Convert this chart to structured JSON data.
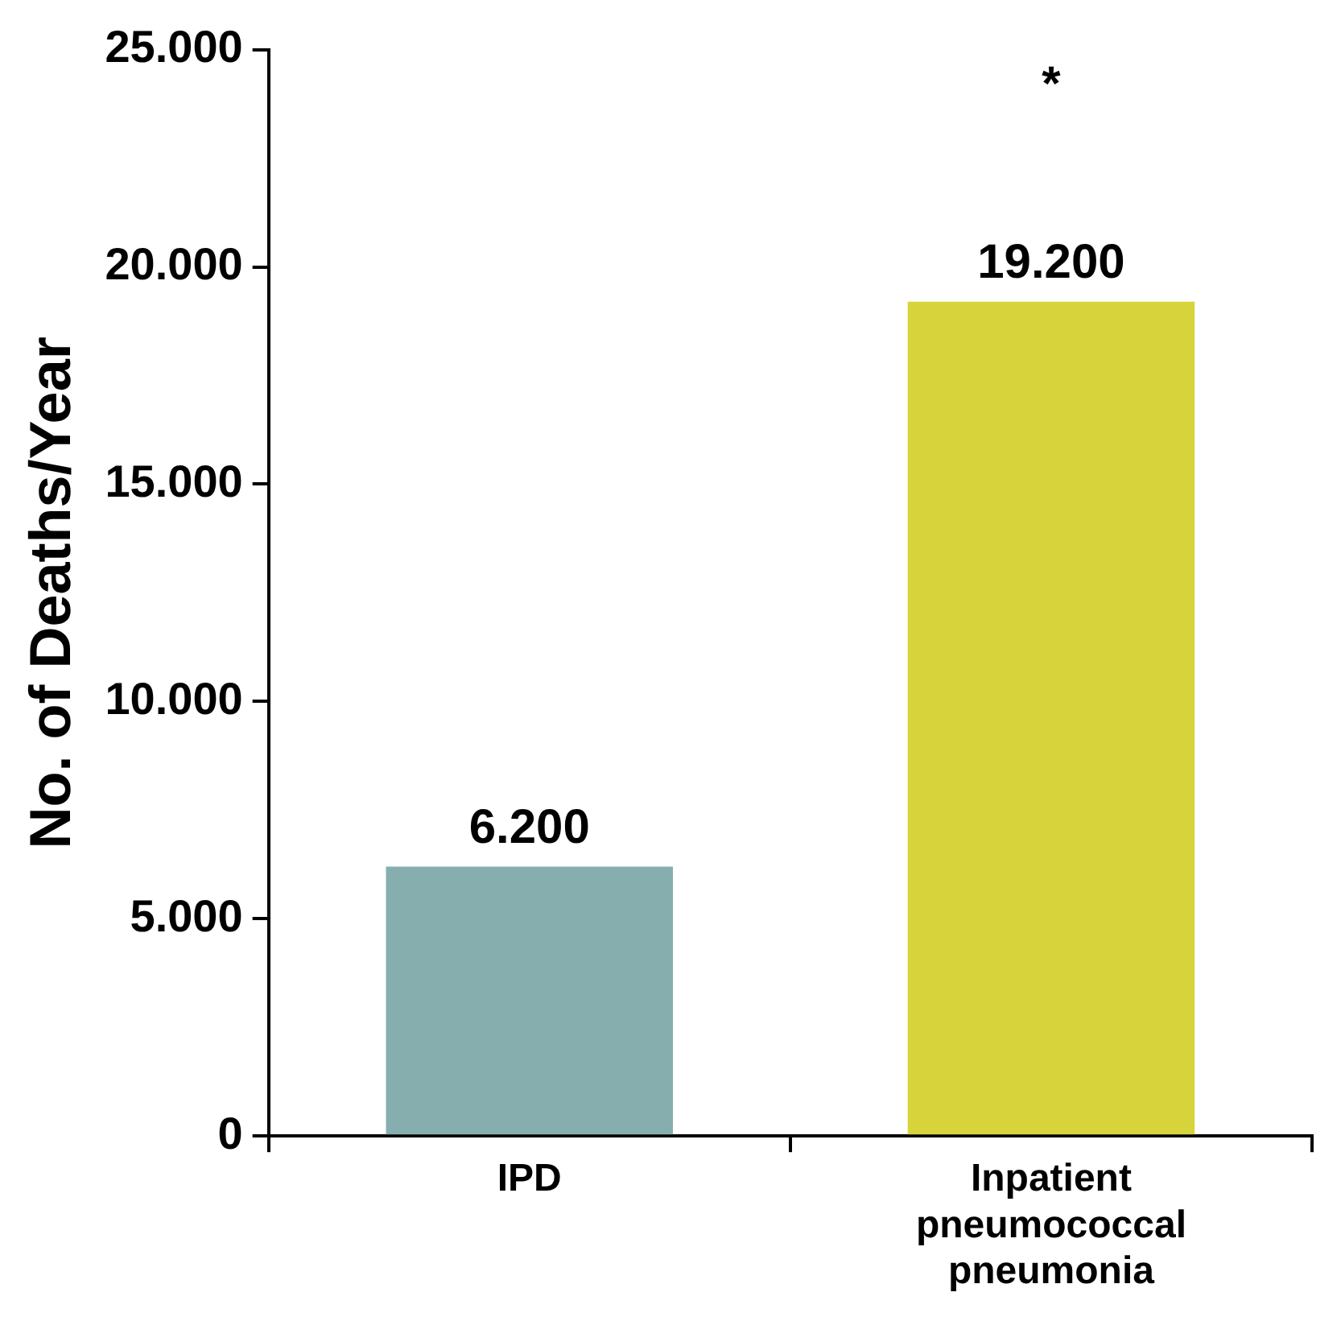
{
  "chart_data": {
    "type": "bar",
    "ylabel": "No. of Deaths/Year",
    "categories": [
      "IPD",
      "Inpatient pneumococcal pneumonia"
    ],
    "values": [
      6200,
      19200
    ],
    "colors": [
      "#86aeae",
      "#d6d43a"
    ],
    "value_labels": [
      "6.200",
      "19.200"
    ],
    "ylim": [
      0,
      25000
    ],
    "yticks": [
      0,
      {
        "value": 5000,
        "label": "5.000"
      },
      {
        "value": 10000,
        "label": "10.000"
      },
      {
        "value": 15000,
        "label": "15.000"
      },
      {
        "value": 20000,
        "label": "20.000"
      },
      {
        "value": 25000,
        "label": "25.000"
      }
    ],
    "annotations": [
      "*"
    ],
    "grid": false,
    "legend": false
  }
}
